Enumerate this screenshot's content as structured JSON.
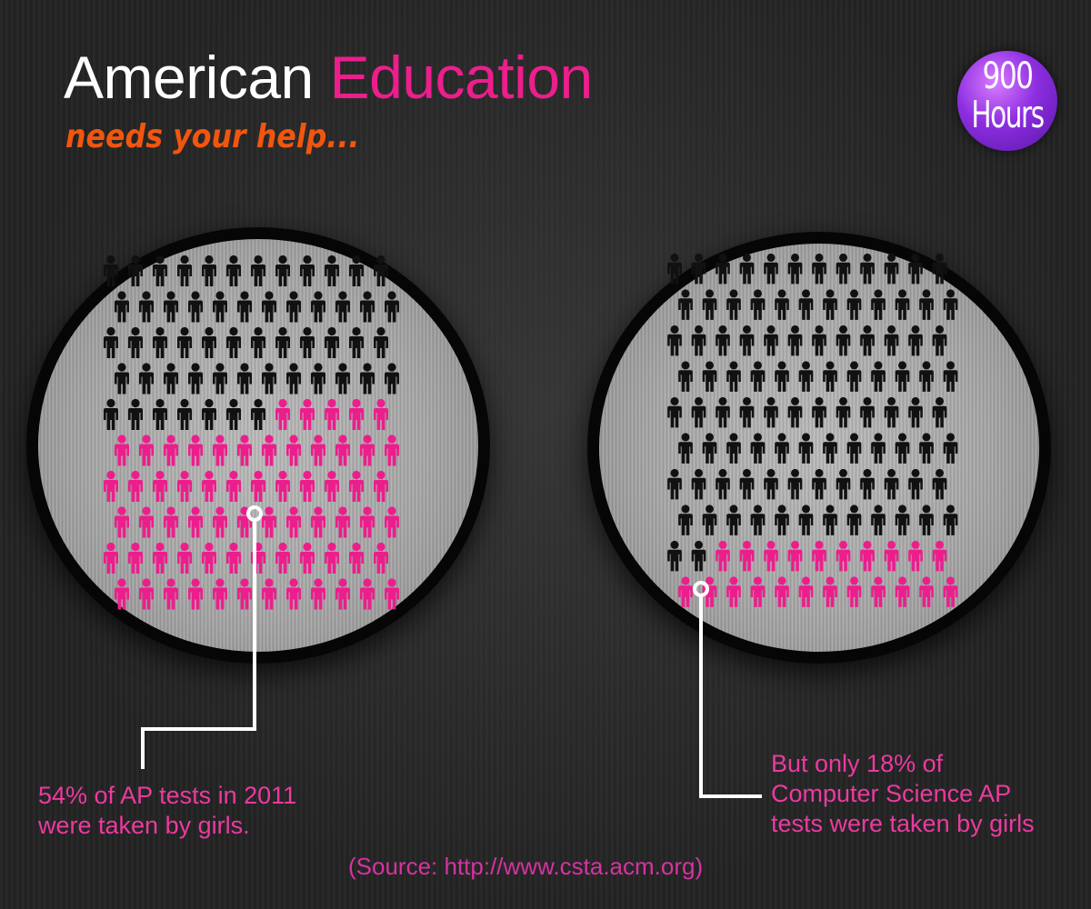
{
  "header": {
    "title_part1": "American ",
    "title_part2": "Education",
    "subtitle": "needs your help..."
  },
  "badge": {
    "line1": "900",
    "line2": "Hours"
  },
  "panels": [
    {
      "caption_line1": "54% of AP tests in 2011",
      "caption_line2": "were taken by girls.",
      "girls_percent": 54
    },
    {
      "caption_line1": "But only 18% of",
      "caption_line2": "Computer Science AP",
      "caption_line3": "tests were taken by girls",
      "girls_percent": 18
    }
  ],
  "source": "(Source: http://www.csta.acm.org)",
  "colors": {
    "title": "#ffffff",
    "accent_pink": "#ec1e8c",
    "subtitle_orange": "#f1560f",
    "badge_purple": "#8c2ee0",
    "figure_boys": "#111111",
    "figure_girls": "#ec1e8c"
  },
  "icons": [
    "person-icon"
  ]
}
